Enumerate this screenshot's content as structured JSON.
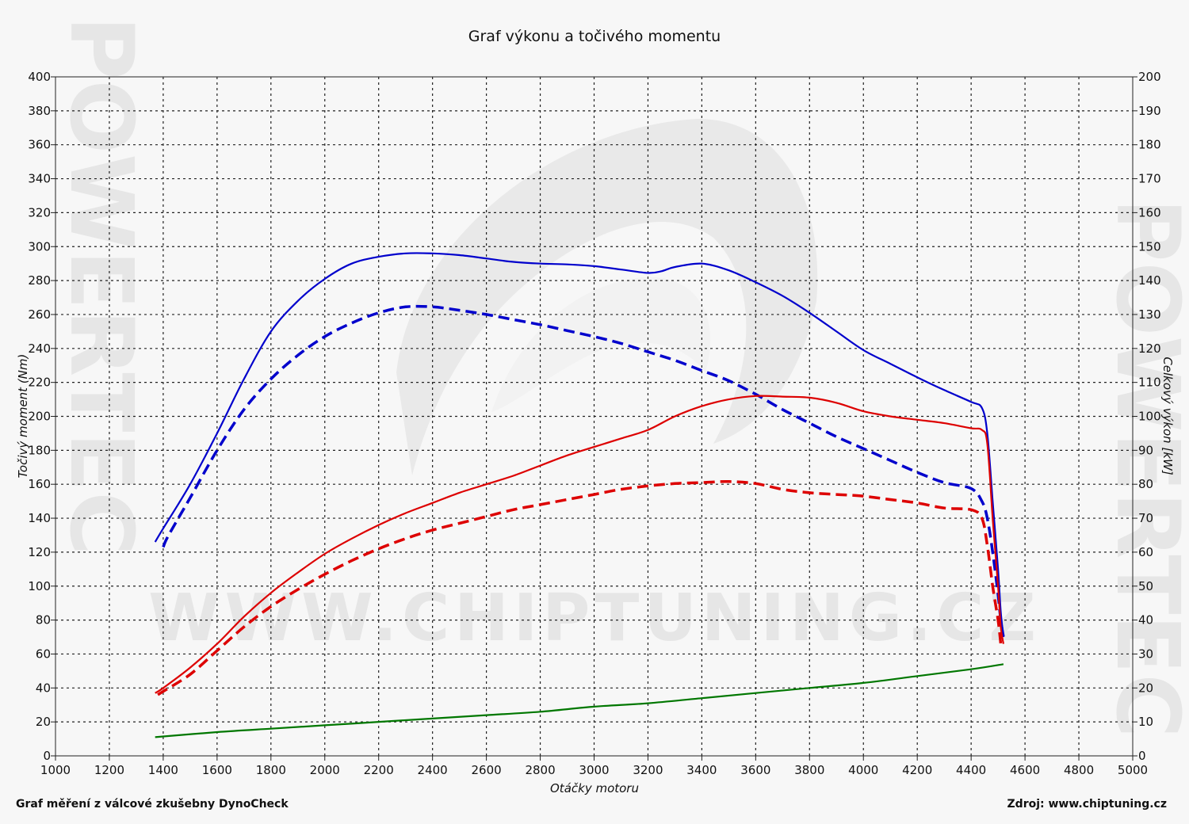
{
  "chart_data": {
    "type": "line",
    "title": "Graf výkonu a točivého momentu",
    "xlabel": "Otáčky motoru",
    "ylabel_left": "Točivý moment (Nm)",
    "ylabel_right": "Celkový výkon [kW]",
    "xlim": [
      1000,
      5000
    ],
    "ylim_left": [
      0,
      400
    ],
    "ylim_right": [
      0,
      200
    ],
    "x_ticks": [
      1000,
      1200,
      1400,
      1600,
      1800,
      2000,
      2200,
      2400,
      2600,
      2800,
      3000,
      3200,
      3400,
      3600,
      3800,
      4000,
      4200,
      4400,
      4600,
      4800,
      5000
    ],
    "y_left_ticks": [
      0,
      20,
      40,
      60,
      80,
      100,
      120,
      140,
      160,
      180,
      200,
      220,
      240,
      260,
      280,
      300,
      320,
      340,
      360,
      380,
      400
    ],
    "y_right_ticks": [
      0,
      10,
      20,
      30,
      40,
      50,
      60,
      70,
      80,
      90,
      100,
      110,
      120,
      130,
      140,
      150,
      160,
      170,
      180,
      190,
      200
    ],
    "grid": true,
    "series": [
      {
        "color": "#0000cc",
        "style": "solid",
        "axis": "left",
        "x": [
          1370,
          1400,
          1500,
          1600,
          1700,
          1800,
          1900,
          2000,
          2100,
          2200,
          2300,
          2400,
          2500,
          2600,
          2700,
          2800,
          2900,
          3000,
          3100,
          3200,
          3250,
          3300,
          3400,
          3500,
          3600,
          3700,
          3800,
          3900,
          4000,
          4100,
          4200,
          4300,
          4400,
          4440,
          4460,
          4480,
          4500,
          4510,
          4520
        ],
        "y": [
          126,
          134,
          160,
          190,
          222,
          250,
          268,
          281,
          290,
          294,
          296,
          296,
          295,
          293,
          291,
          290,
          289.5,
          288.5,
          286.5,
          284.5,
          285.5,
          288,
          290,
          286,
          279,
          271,
          261,
          250,
          239,
          231,
          223,
          215.5,
          208.5,
          205,
          190,
          150,
          110,
          85,
          70
        ]
      },
      {
        "color": "#0000cc",
        "style": "dashed",
        "axis": "left",
        "x": [
          1400,
          1420,
          1500,
          1600,
          1700,
          1800,
          1900,
          2000,
          2100,
          2200,
          2300,
          2400,
          2500,
          2600,
          2700,
          2800,
          2900,
          3000,
          3100,
          3200,
          3300,
          3400,
          3500,
          3600,
          3700,
          3800,
          3900,
          4000,
          4100,
          4200,
          4300,
          4400,
          4440,
          4460,
          4480,
          4500,
          4510,
          4520
        ],
        "y": [
          123,
          130,
          152,
          180,
          204,
          222,
          236,
          247,
          255,
          261,
          264.5,
          264.5,
          262.5,
          260,
          257,
          254,
          250.5,
          247,
          243,
          238,
          233,
          227,
          221,
          213,
          204,
          196,
          188,
          181,
          174,
          167,
          161,
          157.5,
          150,
          140,
          120,
          95,
          80,
          70
        ]
      },
      {
        "color": "#dd0000",
        "style": "solid",
        "axis": "right",
        "x": [
          1370,
          1400,
          1500,
          1600,
          1700,
          1800,
          1900,
          2000,
          2100,
          2200,
          2300,
          2400,
          2500,
          2600,
          2700,
          2800,
          2900,
          3000,
          3100,
          3200,
          3300,
          3400,
          3500,
          3600,
          3700,
          3800,
          3900,
          4000,
          4100,
          4200,
          4300,
          4400,
          4440,
          4460,
          4480,
          4500,
          4510,
          4520
        ],
        "y": [
          18.5,
          20,
          26,
          33,
          41,
          48,
          54,
          59.5,
          64,
          68,
          71.5,
          74.5,
          77.5,
          80,
          82.5,
          85.5,
          88.5,
          91,
          93.5,
          96,
          100,
          103,
          105,
          106,
          105.8,
          105.5,
          104,
          101.5,
          100,
          99,
          98,
          96.5,
          96,
          92,
          70,
          50,
          38,
          33
        ]
      },
      {
        "color": "#dd0000",
        "style": "dashed",
        "axis": "right",
        "x": [
          1380,
          1400,
          1500,
          1600,
          1700,
          1800,
          1900,
          2000,
          2100,
          2200,
          2300,
          2400,
          2500,
          2600,
          2700,
          2800,
          2900,
          3000,
          3100,
          3200,
          3300,
          3400,
          3500,
          3600,
          3700,
          3800,
          3900,
          4000,
          4100,
          4200,
          4300,
          4400,
          4440,
          4460,
          4480,
          4500,
          4510
        ],
        "y": [
          18,
          19,
          24,
          31,
          38,
          44,
          49,
          53.5,
          57.5,
          61,
          64,
          66.5,
          68.5,
          70.5,
          72.5,
          74,
          75.5,
          77,
          78.5,
          79.5,
          80.2,
          80.5,
          80.8,
          80.2,
          78.5,
          77.5,
          77,
          76.5,
          75.5,
          74.5,
          73,
          72.5,
          70,
          62,
          50,
          40,
          33
        ]
      },
      {
        "color": "#007700",
        "style": "solid",
        "axis": "right",
        "x": [
          1370,
          1600,
          1800,
          2000,
          2200,
          2400,
          2600,
          2800,
          3000,
          3200,
          3400,
          3600,
          3800,
          4000,
          4200,
          4400,
          4520
        ],
        "y": [
          5.5,
          7,
          8,
          9,
          10,
          11,
          12,
          13,
          14.5,
          15.5,
          17,
          18.5,
          20,
          21.5,
          23.5,
          25.5,
          27
        ]
      }
    ]
  },
  "footer": {
    "left": "Graf měření z válcové zkušebny DynoCheck",
    "right": "Zdroj: www.chiptuning.cz"
  },
  "watermark": {
    "url": "WWW.CHIPTUNING.CZ",
    "side": "POWERTEC"
  }
}
